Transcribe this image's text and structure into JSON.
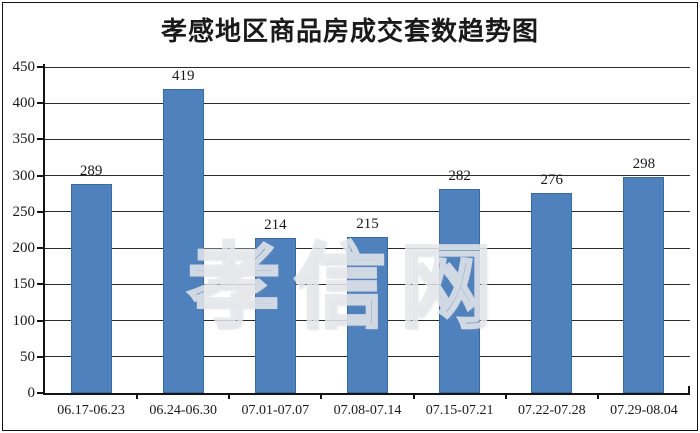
{
  "chart_data": {
    "type": "bar",
    "title": "孝感地区商品房成交套数趋势图",
    "categories": [
      "06.17-06.23",
      "06.24-06.30",
      "07.01-07.07",
      "07.08-07.14",
      "07.15-07.21",
      "07.22-07.28",
      "07.29-08.04"
    ],
    "values": [
      289,
      419,
      214,
      215,
      282,
      276,
      298
    ],
    "data_labels_shown": true,
    "xlabel": "",
    "ylabel": "",
    "ylim": [
      0,
      450
    ],
    "ytick_step": 50,
    "yticks": [
      0,
      50,
      100,
      150,
      200,
      250,
      300,
      350,
      400,
      450
    ],
    "grid": "horizontal",
    "legend": "none",
    "bar_color": "#4f81bd",
    "bar_border_color": "#3a68a0",
    "grid_color": "#2a2a2a",
    "axis_color": "#141414",
    "background_color": "#ffffff",
    "border_color": "#141414",
    "watermark": "孝信网"
  }
}
